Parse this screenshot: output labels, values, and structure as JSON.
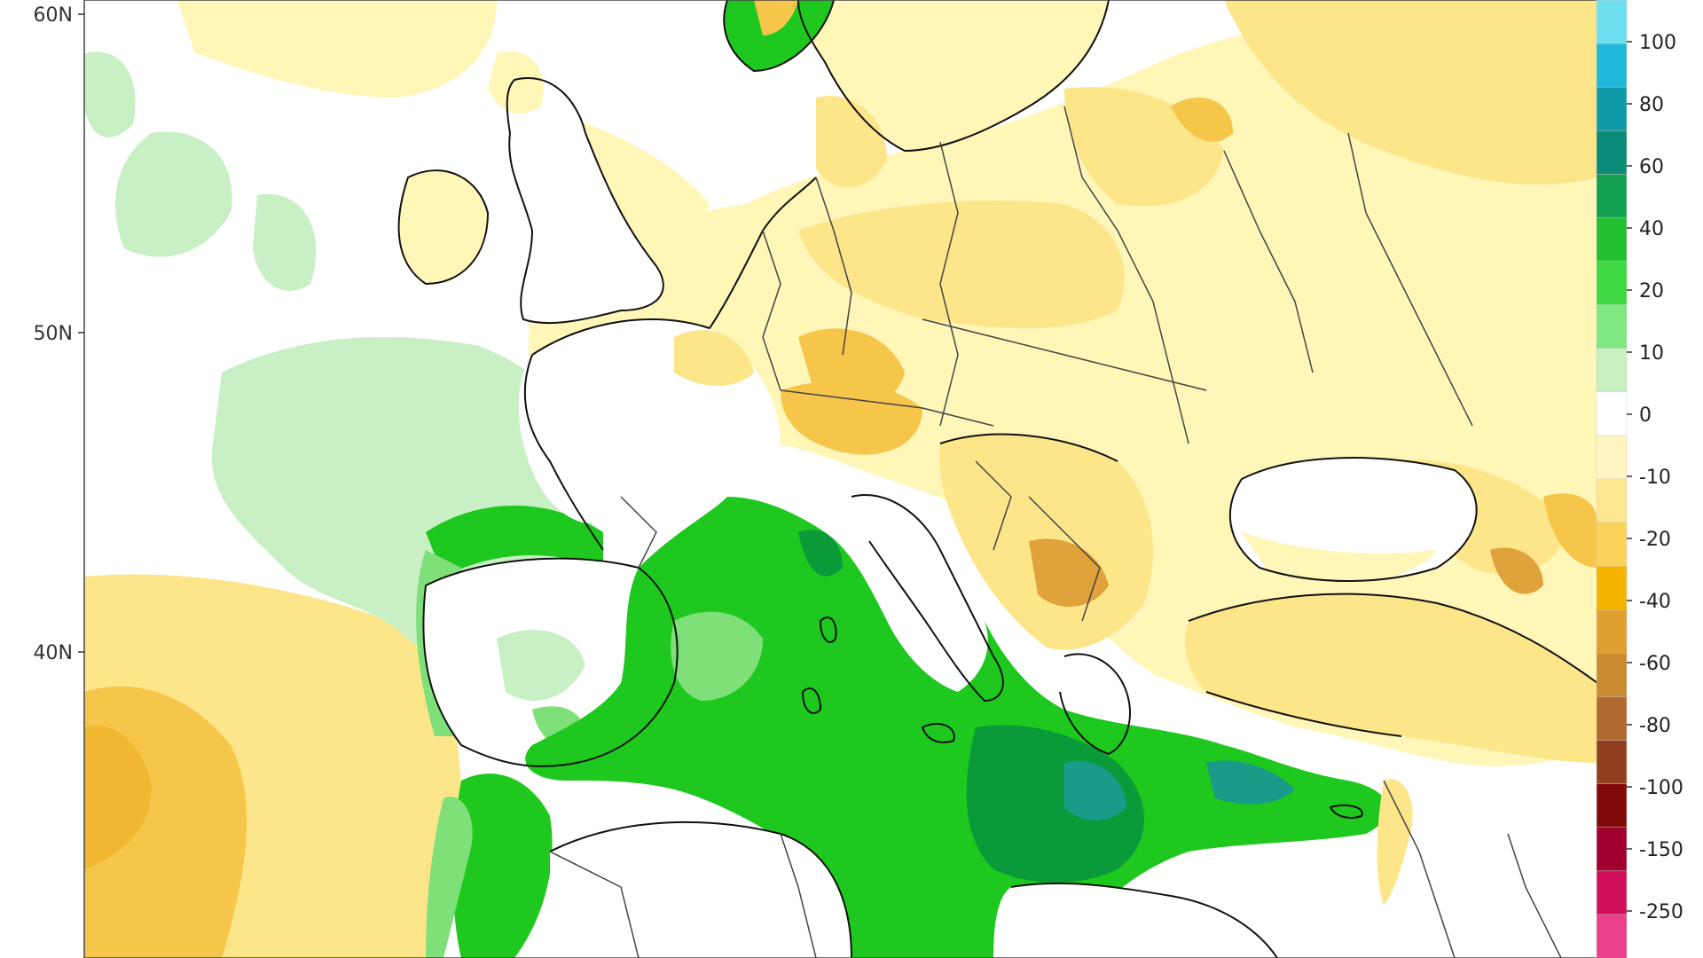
{
  "map": {
    "lat_labels": [
      "60N",
      "50N",
      "40N"
    ],
    "colors": {
      "ocean_neutral": "#ffffff",
      "dry_light": "#fff6b8",
      "dry_mid": "#fde58a",
      "dry_strong": "#f6c64a",
      "dry_deep": "#e0a23a",
      "wet_light": "#c9f0c4",
      "wet_mid": "#7fe07a",
      "wet_strong": "#1ec81e",
      "wet_deep": "#0a9a3a",
      "wet_teal": "#1a9a88",
      "coast": "#111111",
      "border": "#555555"
    }
  },
  "colorbar": {
    "labels": [
      "100",
      "80",
      "60",
      "40",
      "20",
      "10",
      "0",
      "-10",
      "-20",
      "-40",
      "-60",
      "-80",
      "-100",
      "-150",
      "-250"
    ],
    "colors": [
      "#6fe0f0",
      "#20b8d8",
      "#109aa8",
      "#0a8a78",
      "#12a050",
      "#22c030",
      "#40d840",
      "#80e880",
      "#c8f0c0",
      "#ffffff",
      "#fff4c0",
      "#fde690",
      "#fbd25a",
      "#f5b400",
      "#e0a030",
      "#c98a30",
      "#b06a30",
      "#904020",
      "#800a0a",
      "#a00030",
      "#d0105a",
      "#e8408a"
    ]
  }
}
